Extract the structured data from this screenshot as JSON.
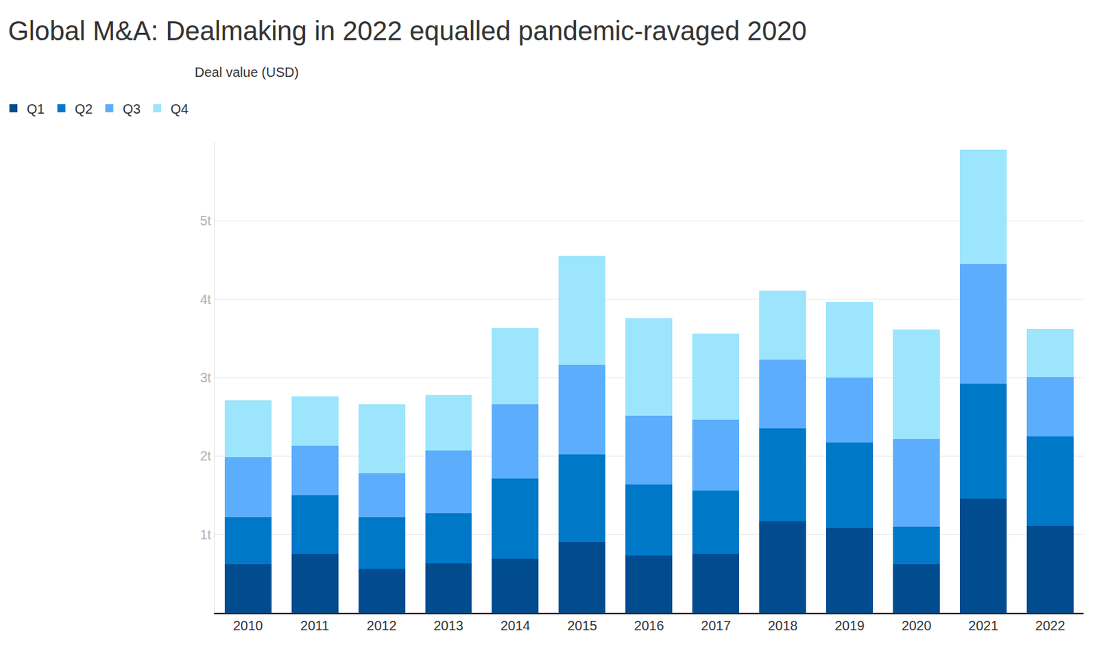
{
  "chart_data": {
    "type": "bar",
    "title": "Global M&A: Dealmaking in 2022 equalled pandemic-ravaged 2020",
    "subtitle": "Deal value (USD)",
    "categories": [
      "2010",
      "2011",
      "2012",
      "2013",
      "2014",
      "2015",
      "2016",
      "2017",
      "2018",
      "2019",
      "2020",
      "2021",
      "2022"
    ],
    "series": [
      {
        "name": "Q1",
        "color": "#004c8f",
        "values": [
          0.62,
          0.75,
          0.56,
          0.63,
          0.69,
          0.9,
          0.73,
          0.75,
          1.17,
          1.08,
          0.62,
          1.46,
          1.11
        ]
      },
      {
        "name": "Q2",
        "color": "#0078c8",
        "values": [
          0.6,
          0.75,
          0.66,
          0.64,
          1.02,
          1.12,
          0.91,
          0.81,
          1.18,
          1.09,
          0.48,
          1.46,
          1.14
        ]
      },
      {
        "name": "Q3",
        "color": "#5caefc",
        "values": [
          0.77,
          0.63,
          0.56,
          0.8,
          0.95,
          1.14,
          0.87,
          0.9,
          0.88,
          0.83,
          1.12,
          1.53,
          0.76
        ]
      },
      {
        "name": "Q4",
        "color": "#9ce5fc",
        "values": [
          0.72,
          0.63,
          0.88,
          0.71,
          0.97,
          1.39,
          1.25,
          1.1,
          0.88,
          0.96,
          1.39,
          1.46,
          0.61
        ]
      }
    ],
    "stacked": true,
    "ylim": [
      0,
      6
    ],
    "yticks": [
      {
        "value": 1,
        "label": "1t"
      },
      {
        "value": 2,
        "label": "2t"
      },
      {
        "value": 3,
        "label": "3t"
      },
      {
        "value": 4,
        "label": "4t"
      },
      {
        "value": 5,
        "label": "5t"
      }
    ],
    "grid": true,
    "legend": "top left"
  }
}
